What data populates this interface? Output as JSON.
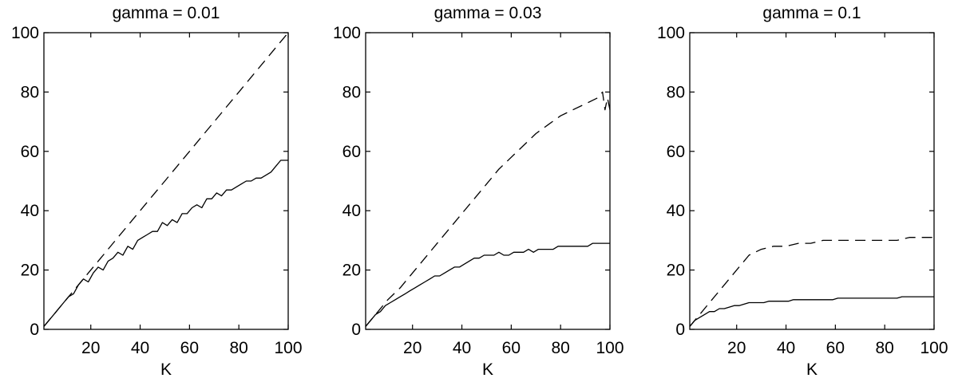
{
  "chart_data": [
    {
      "type": "line",
      "title": "gamma = 0.01",
      "xlabel": "K",
      "ylabel": "",
      "xlim": [
        1,
        100
      ],
      "ylim": [
        0,
        100
      ],
      "xticks": [
        20,
        40,
        60,
        80,
        100
      ],
      "yticks": [
        0,
        20,
        40,
        60,
        80,
        100
      ],
      "grid": false,
      "series": [
        {
          "style": "dashed",
          "x": [
            1,
            5,
            10,
            15,
            20,
            25,
            30,
            35,
            40,
            45,
            50,
            55,
            60,
            65,
            70,
            75,
            80,
            85,
            90,
            95,
            100
          ],
          "y": [
            1,
            5,
            10,
            15,
            20,
            25,
            30,
            35,
            40,
            45,
            50,
            55,
            60,
            65,
            70,
            75,
            80,
            85,
            90,
            95,
            100
          ]
        },
        {
          "style": "solid",
          "x": [
            1,
            3,
            5,
            7,
            9,
            11,
            13,
            15,
            17,
            19,
            21,
            23,
            25,
            27,
            29,
            31,
            33,
            35,
            37,
            39,
            41,
            43,
            45,
            47,
            49,
            51,
            53,
            55,
            57,
            59,
            61,
            63,
            65,
            67,
            69,
            71,
            73,
            75,
            77,
            79,
            81,
            83,
            85,
            87,
            89,
            91,
            93,
            95,
            97,
            99,
            100
          ],
          "y": [
            1,
            3,
            5,
            7,
            9,
            11,
            12,
            15,
            17,
            16,
            19,
            21,
            20,
            23,
            24,
            26,
            25,
            28,
            27,
            30,
            31,
            32,
            33,
            33,
            36,
            35,
            37,
            36,
            39,
            39,
            41,
            42,
            41,
            44,
            44,
            46,
            45,
            47,
            47,
            48,
            49,
            50,
            50,
            51,
            51,
            52,
            53,
            55,
            57,
            57,
            57
          ]
        }
      ]
    },
    {
      "type": "line",
      "title": "gamma = 0.03",
      "xlabel": "K",
      "ylabel": "",
      "xlim": [
        1,
        100
      ],
      "ylim": [
        0,
        100
      ],
      "xticks": [
        20,
        40,
        60,
        80,
        100
      ],
      "yticks": [
        0,
        20,
        40,
        60,
        80,
        100
      ],
      "grid": false,
      "series": [
        {
          "style": "dashed",
          "x": [
            1,
            5,
            10,
            15,
            20,
            25,
            30,
            35,
            40,
            45,
            50,
            55,
            60,
            65,
            70,
            75,
            80,
            85,
            90,
            95,
            97,
            98,
            99,
            100
          ],
          "y": [
            1,
            5,
            10,
            14,
            19,
            24,
            29,
            34,
            39,
            44,
            49,
            54,
            58,
            62,
            66,
            69,
            72,
            74,
            76,
            78,
            80,
            74,
            78,
            74
          ]
        },
        {
          "style": "solid",
          "x": [
            1,
            3,
            5,
            7,
            9,
            11,
            13,
            15,
            17,
            19,
            21,
            23,
            25,
            27,
            29,
            31,
            33,
            35,
            37,
            39,
            41,
            43,
            45,
            47,
            49,
            51,
            53,
            55,
            57,
            59,
            61,
            63,
            65,
            67,
            69,
            71,
            73,
            75,
            77,
            79,
            81,
            83,
            85,
            87,
            89,
            91,
            93,
            95,
            97,
            99,
            100
          ],
          "y": [
            1,
            3,
            5,
            6,
            8,
            9,
            10,
            11,
            12,
            13,
            14,
            15,
            16,
            17,
            18,
            18,
            19,
            20,
            21,
            21,
            22,
            23,
            24,
            24,
            25,
            25,
            25,
            26,
            25,
            25,
            26,
            26,
            26,
            27,
            26,
            27,
            27,
            27,
            27,
            28,
            28,
            28,
            28,
            28,
            28,
            28,
            29,
            29,
            29,
            29,
            29
          ]
        }
      ]
    },
    {
      "type": "line",
      "title": "gamma = 0.1",
      "xlabel": "K",
      "ylabel": "",
      "xlim": [
        1,
        100
      ],
      "ylim": [
        0,
        100
      ],
      "xticks": [
        20,
        40,
        60,
        80,
        100
      ],
      "yticks": [
        0,
        20,
        40,
        60,
        80,
        100
      ],
      "grid": false,
      "series": [
        {
          "style": "dashed",
          "x": [
            1,
            5,
            10,
            15,
            20,
            25,
            30,
            35,
            40,
            45,
            50,
            55,
            60,
            65,
            70,
            75,
            80,
            85,
            90,
            95,
            100
          ],
          "y": [
            1,
            5,
            10,
            15,
            20,
            25,
            27,
            28,
            28,
            29,
            29,
            30,
            30,
            30,
            30,
            30,
            30,
            30,
            31,
            31,
            31
          ]
        },
        {
          "style": "solid",
          "x": [
            1,
            3,
            5,
            7,
            9,
            11,
            13,
            15,
            17,
            19,
            21,
            23,
            25,
            27,
            29,
            31,
            33,
            35,
            37,
            39,
            41,
            43,
            45,
            47,
            49,
            51,
            53,
            55,
            57,
            59,
            61,
            63,
            65,
            67,
            69,
            71,
            73,
            75,
            77,
            79,
            81,
            83,
            85,
            87,
            89,
            91,
            93,
            95,
            97,
            99,
            100
          ],
          "y": [
            1,
            3,
            4,
            5,
            6,
            6,
            7,
            7,
            7.5,
            8,
            8,
            8.5,
            9,
            9,
            9,
            9,
            9.5,
            9.5,
            9.5,
            9.5,
            9.5,
            10,
            10,
            10,
            10,
            10,
            10,
            10,
            10,
            10,
            10.5,
            10.5,
            10.5,
            10.5,
            10.5,
            10.5,
            10.5,
            10.5,
            10.5,
            10.5,
            10.5,
            10.5,
            10.5,
            11,
            11,
            11,
            11,
            11,
            11,
            11,
            11
          ]
        }
      ]
    }
  ]
}
